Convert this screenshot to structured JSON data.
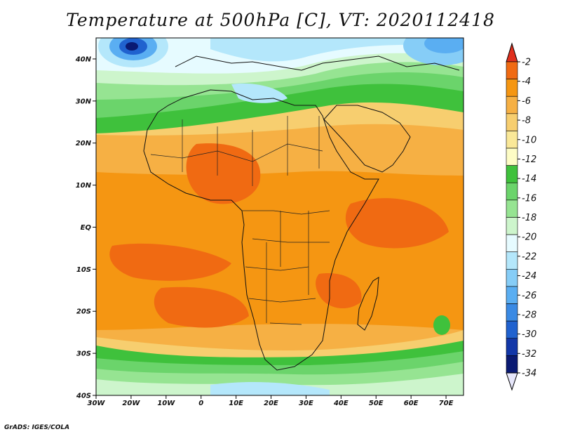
{
  "title": "Temperature at 500hPa [C], VT: 2020112418",
  "footer": "GrADS: IGES/COLA",
  "map": {
    "lon_labels": [
      "30W",
      "20W",
      "10W",
      "0",
      "10E",
      "20E",
      "30E",
      "40E",
      "50E",
      "60E",
      "70E"
    ],
    "lat_labels": [
      "40N",
      "30N",
      "20N",
      "10N",
      "EQ",
      "10S",
      "20S",
      "30S",
      "40S"
    ],
    "lon_range": [
      -30,
      75
    ],
    "lat_range": [
      -40,
      45
    ]
  },
  "colorbar": {
    "labels": [
      "-2",
      "-4",
      "-6",
      "-8",
      "-10",
      "-12",
      "-14",
      "-16",
      "-18",
      "-20",
      "-22",
      "-24",
      "-26",
      "-28",
      "-30",
      "-32",
      "-34"
    ],
    "colors": [
      "#e0301e",
      "#f06a12",
      "#f59612",
      "#f6b044",
      "#f7ce6f",
      "#fae898",
      "#fdfcc5",
      "#3fc13c",
      "#6bd46b",
      "#96e492",
      "#cdf5cc",
      "#e6fbff",
      "#b4e7fb",
      "#86cdf7",
      "#5aaef2",
      "#3a8ae4",
      "#2062cf",
      "#1237a8",
      "#0a1a73",
      "#e6e6fa"
    ],
    "top_tip_color": "#e0301e",
    "bottom_tip_color": "#e6e6fa"
  }
}
